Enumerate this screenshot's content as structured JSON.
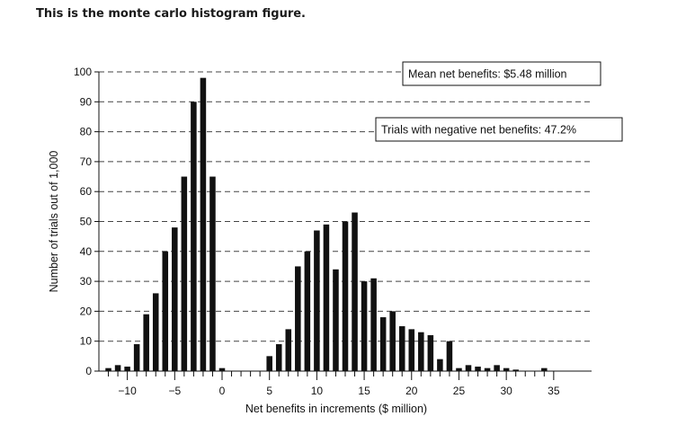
{
  "caption": "This is the monte carlo histogram figure.",
  "chart_data": {
    "type": "bar",
    "xlabel": "Net benefits in increments ($ million)",
    "ylabel": "Number of trials out of 1,000",
    "xlim": [
      -13,
      39
    ],
    "ylim": [
      0,
      100
    ],
    "xticks": [
      -10,
      -5,
      0,
      5,
      10,
      15,
      20,
      25,
      30,
      35
    ],
    "xtick_labels": [
      "−10",
      "−5",
      "0",
      "5",
      "10",
      "15",
      "20",
      "25",
      "30",
      "35"
    ],
    "yticks": [
      0,
      10,
      20,
      30,
      40,
      50,
      60,
      70,
      80,
      90,
      100
    ],
    "grid": "horizontal dashed",
    "annotations": [
      "Mean net benefits: $5.48 million",
      "Trials with negative net benefits: 47.2%"
    ],
    "x": [
      -12,
      -11,
      -10,
      -9,
      -8,
      -7,
      -6,
      -5,
      -4,
      -3,
      -2,
      -1,
      0,
      5,
      6,
      7,
      8,
      9,
      10,
      11,
      12,
      13,
      14,
      15,
      16,
      17,
      18,
      19,
      20,
      21,
      22,
      23,
      24,
      25,
      26,
      27,
      28,
      29,
      30,
      31,
      32,
      33,
      34,
      35
    ],
    "values": [
      1,
      2,
      1.5,
      9,
      19,
      26,
      40,
      48,
      65,
      90,
      98,
      65,
      1,
      5,
      9,
      14,
      35,
      40,
      47,
      49,
      34,
      50,
      53,
      30,
      31,
      18,
      20,
      15,
      14,
      13,
      12,
      4,
      10,
      1,
      2,
      1.5,
      1,
      2,
      1,
      0.5,
      0,
      0,
      1,
      0
    ]
  }
}
